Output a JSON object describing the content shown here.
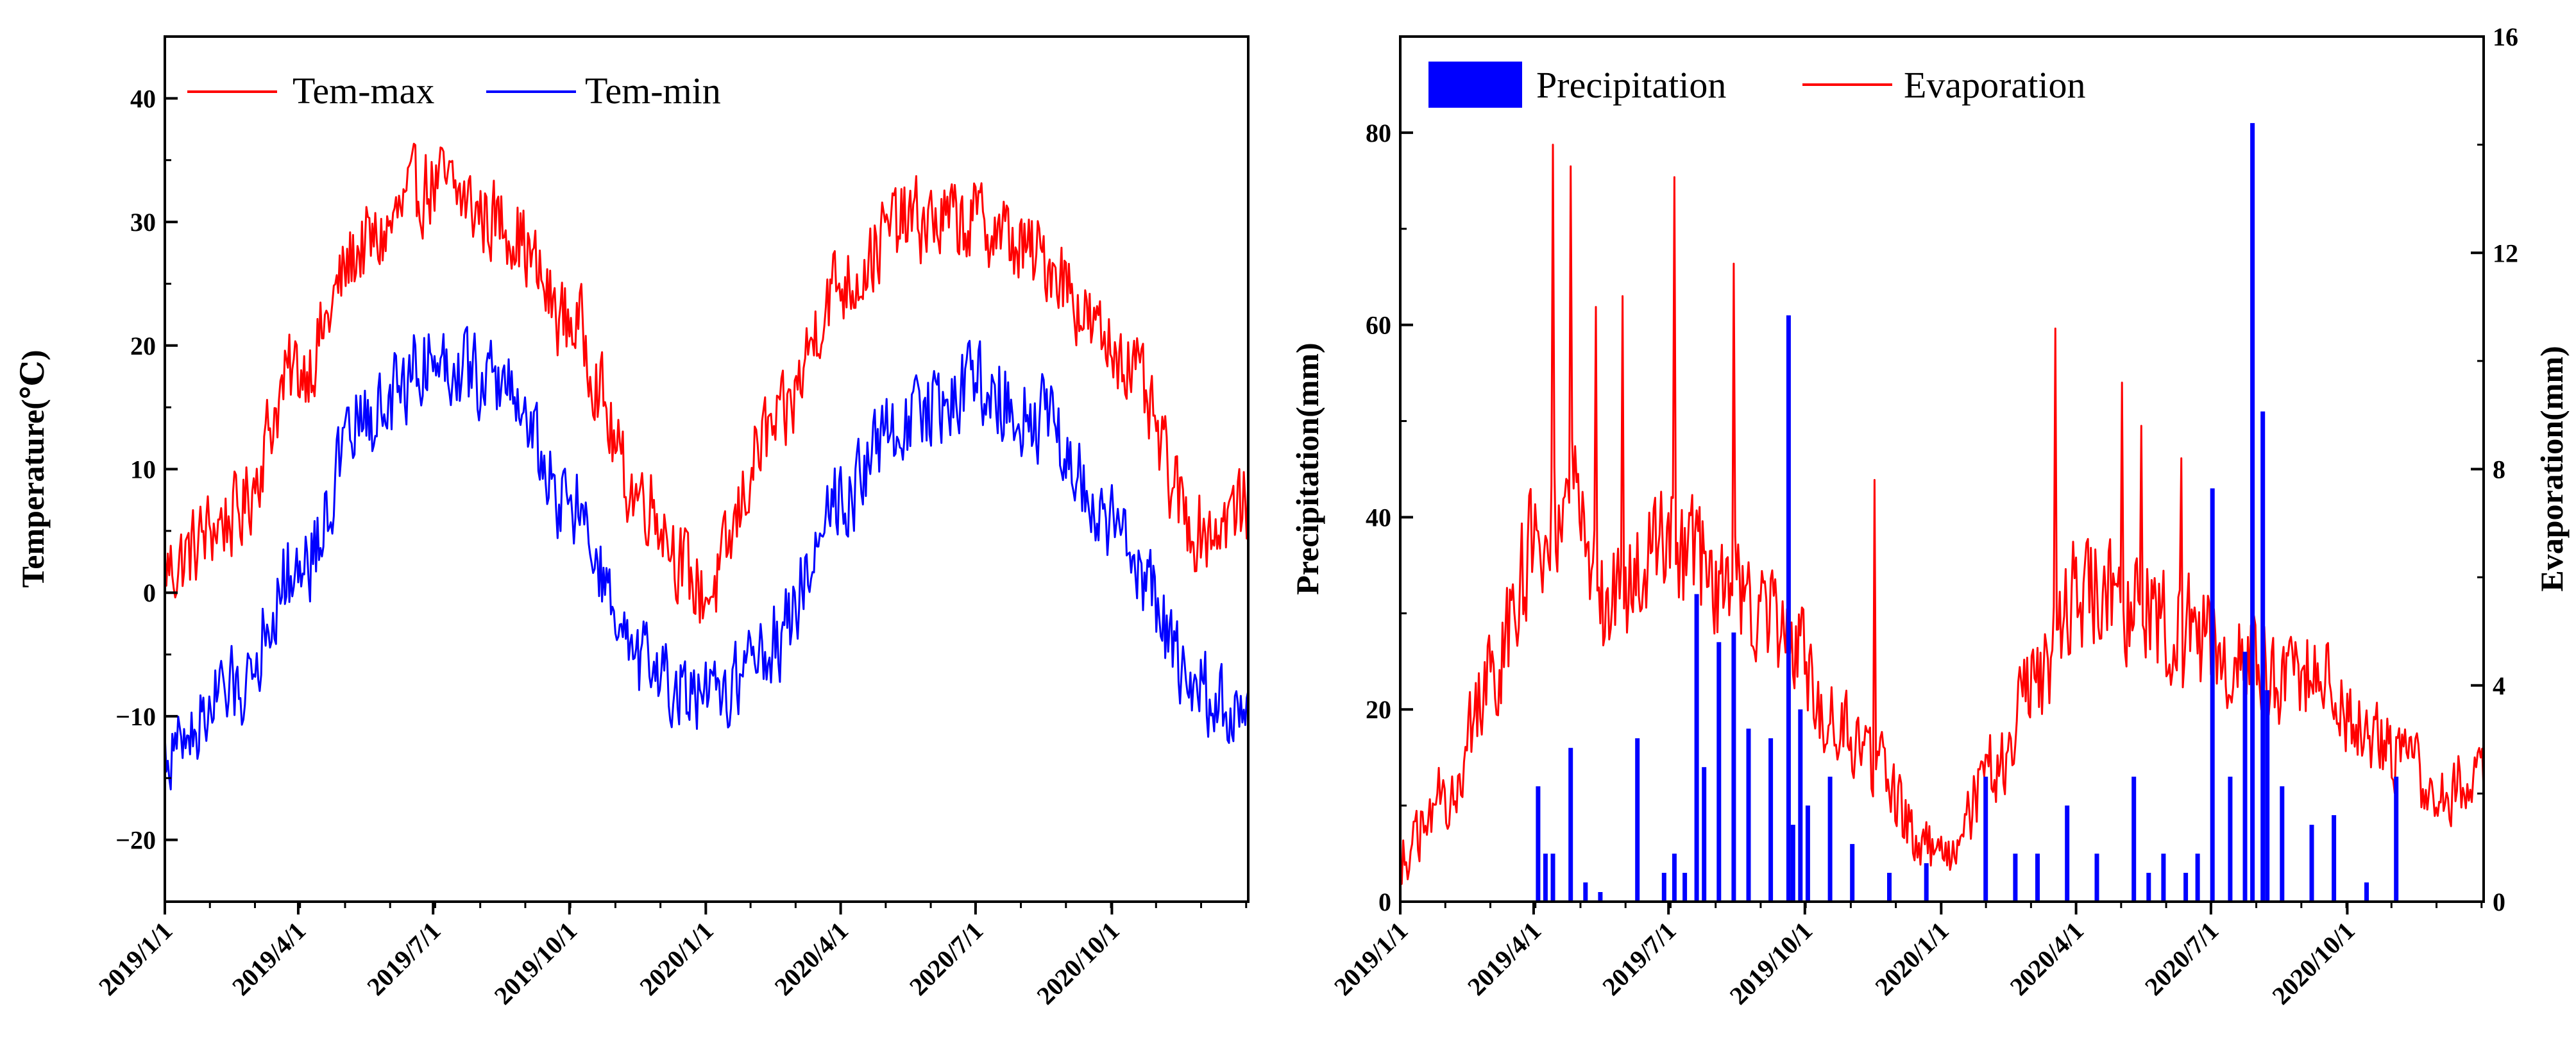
{
  "chart_data": [
    {
      "type": "line",
      "title": "",
      "xlabel": "",
      "ylabel": "Temperature(℃)",
      "ylim": [
        -25,
        45
      ],
      "yticks": [
        -20,
        -10,
        0,
        10,
        20,
        30,
        40
      ],
      "x_range_days": [
        0,
        731
      ],
      "xtick_labels": [
        "2019/1/1",
        "2019/4/1",
        "2019/7/1",
        "2019/10/1",
        "2020/1/1",
        "2020/4/1",
        "2020/7/1",
        "2020/10/1"
      ],
      "xtick_days": [
        0,
        90,
        181,
        273,
        365,
        456,
        547,
        639
      ],
      "legend_position": "top-left",
      "series": [
        {
          "name": "Tem-max",
          "color": "#ff0000",
          "seasonal_keypoints": {
            "x": [
              0,
              45,
              90,
              135,
              181,
              228,
              273,
              320,
              365,
              410,
              456,
              500,
              547,
              593,
              639,
              700,
              731
            ],
            "y": [
              2,
              6,
              18,
              28,
              33,
              30,
              22,
              8,
              0,
              13,
              25,
              30,
              30,
              27,
              20,
              5,
              7
            ]
          }
        },
        {
          "name": "Tem-min",
          "color": "#0000ff",
          "seasonal_keypoints": {
            "x": [
              0,
              45,
              90,
              135,
              181,
              228,
              273,
              320,
              365,
              410,
              456,
              500,
              547,
              593,
              639,
              700,
              731
            ],
            "y": [
              -13,
              -8,
              2,
              14,
              19,
              17,
              7,
              -6,
              -9,
              -4,
              8,
              14,
              17,
              14,
              5,
              -8,
              -11
            ]
          }
        }
      ]
    },
    {
      "type": "bar+line",
      "title": "",
      "xlabel": "",
      "ylabel": "Precipitation(mm)",
      "ylabel_right": "Evaporation(mm)",
      "ylim": [
        0,
        90
      ],
      "ylim_right": [
        0,
        16
      ],
      "yticks": [
        0,
        20,
        40,
        60,
        80
      ],
      "yticks_right": [
        0,
        4,
        8,
        12,
        16
      ],
      "x_range_days": [
        0,
        731
      ],
      "xtick_labels": [
        "2019/1/1",
        "2019/4/1",
        "2019/7/1",
        "2019/10/1",
        "2020/1/1",
        "2020/4/1",
        "2020/7/1",
        "2020/10/1"
      ],
      "xtick_days": [
        0,
        90,
        181,
        273,
        365,
        456,
        547,
        639
      ],
      "legend_position": "top",
      "series": [
        {
          "name": "Precipitation",
          "color": "#0000ff",
          "axis": "left",
          "day": [
            93,
            98,
            103,
            115,
            125,
            135,
            160,
            178,
            185,
            192,
            200,
            205,
            215,
            225,
            235,
            250,
            262,
            265,
            270,
            275,
            290,
            305,
            330,
            355,
            395,
            415,
            430,
            450,
            470,
            495,
            505,
            515,
            530,
            538,
            548,
            560,
            570,
            575,
            582,
            585,
            595,
            615,
            630,
            652,
            672
          ],
          "values": [
            12,
            5,
            5,
            16,
            2,
            1,
            17,
            3,
            5,
            3,
            32,
            14,
            27,
            28,
            18,
            17,
            61,
            8,
            20,
            10,
            13,
            6,
            3,
            4,
            13,
            5,
            5,
            10,
            5,
            13,
            3,
            5,
            3,
            5,
            43,
            13,
            26,
            81,
            51,
            22,
            12,
            8,
            9,
            2,
            13
          ]
        },
        {
          "name": "Evaporation",
          "color": "#ff0000",
          "axis": "right",
          "seasonal_keypoints": {
            "x": [
              0,
              30,
              60,
              90,
              110,
              140,
              181,
              200,
              230,
              260,
              290,
              320,
              350,
              370,
              400,
              430,
              460,
              500,
              530,
              560,
              590,
              620,
              650,
              680,
              700,
              731
            ],
            "y": [
              0.8,
              2.0,
              4.0,
              6.5,
              7.5,
              5.5,
              6.5,
              6.2,
              5.5,
              5.0,
              3.5,
              2.5,
              1.2,
              0.8,
              2.5,
              4.0,
              5.8,
              5.5,
              5.0,
              4.5,
              4.2,
              4.3,
              3.2,
              2.5,
              2.0,
              2.3
            ]
          },
          "peaks": {
            "x": [
              103,
              115,
              132,
              150,
              185,
              225,
              320,
              442,
              487,
              500,
              527
            ],
            "y": [
              14.0,
              13.6,
              11.0,
              11.2,
              13.4,
              11.8,
              7.8,
              10.6,
              9.6,
              8.8,
              8.2
            ]
          }
        }
      ]
    }
  ]
}
